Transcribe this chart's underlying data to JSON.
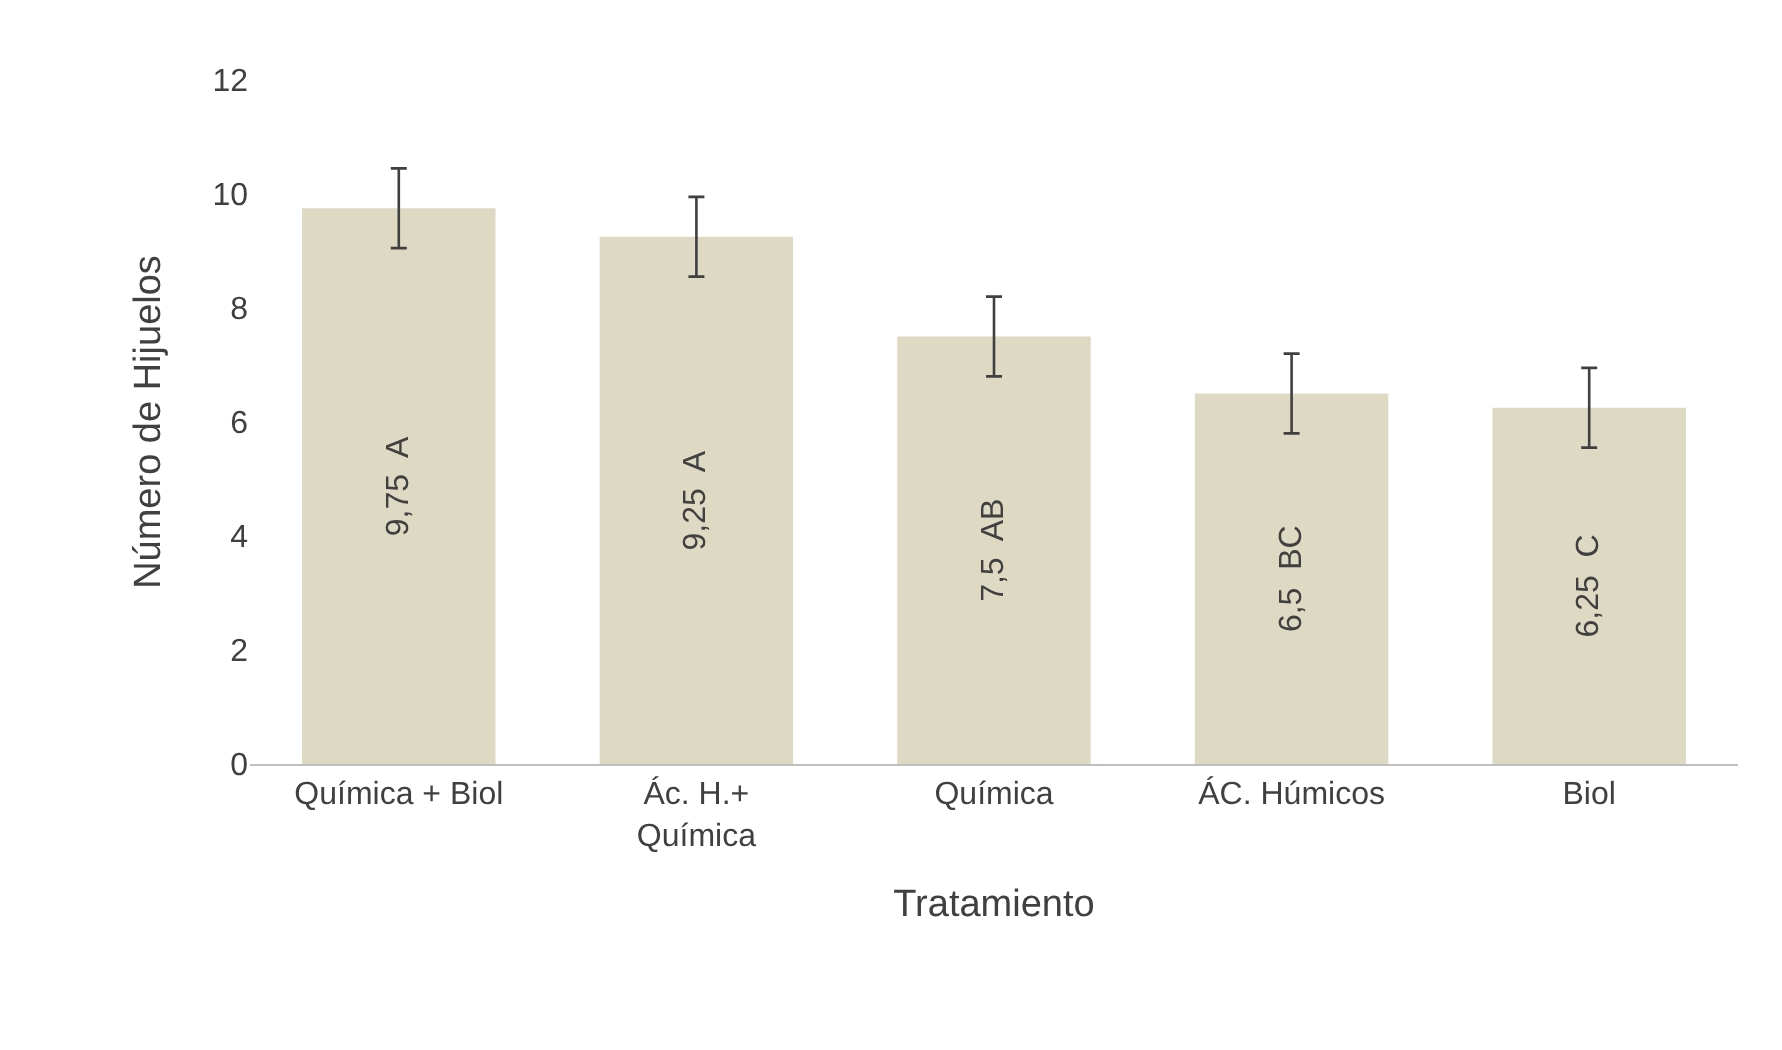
{
  "chart_data": {
    "type": "bar",
    "xlabel": "Tratamiento",
    "ylabel": "Número de Hijuelos",
    "categories": [
      "Química + Biol",
      "Ác. H.+\nQuímica",
      "Química",
      "ÁC. Húmicos",
      "Biol"
    ],
    "values": [
      9.75,
      9.25,
      7.5,
      6.5,
      6.25
    ],
    "color": "#ddd9c3",
    "errors": [
      0.7,
      0.7,
      0.7,
      0.7,
      0.7
    ],
    "value_labels": [
      "9,75  A",
      "9,25  A",
      "7,5  AB",
      "6,5  BC",
      "6,25  C"
    ],
    "ylim": [
      0,
      12
    ],
    "yticks": [
      0,
      2,
      4,
      6,
      8,
      10,
      12
    ]
  }
}
